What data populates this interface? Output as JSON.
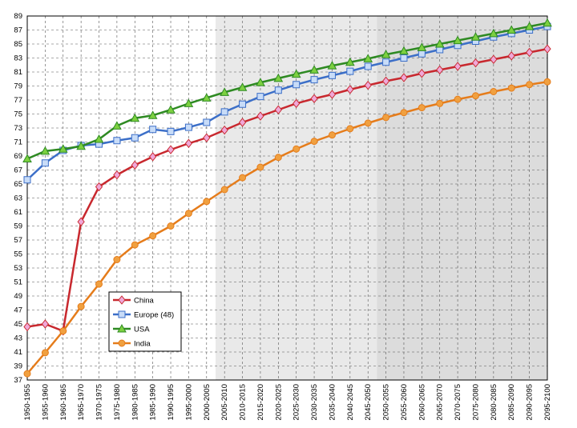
{
  "chart_data": {
    "type": "line",
    "categories": [
      "1950-1955",
      "1955-1960",
      "1960-1965",
      "1965-1970",
      "1970-1975",
      "1975-1980",
      "1980-1985",
      "1985-1990",
      "1990-1995",
      "1995-2000",
      "2000-2005",
      "2005-2010",
      "2010-2015",
      "2015-2020",
      "2020-2025",
      "2025-2030",
      "2030-2035",
      "2035-2040",
      "2040-2045",
      "2045-2050",
      "2050-2055",
      "2055-2060",
      "2060-2065",
      "2065-2070",
      "2070-2075",
      "2075-2080",
      "2080-2085",
      "2085-2090",
      "2090-2095",
      "2095-2100"
    ],
    "series": [
      {
        "name": "China",
        "color": "#c8282e",
        "marker": "diamond",
        "marker_color": "#f0a8d8",
        "values": [
          44.6,
          45.0,
          44.0,
          59.6,
          64.6,
          66.3,
          67.7,
          68.9,
          69.9,
          70.8,
          71.6,
          72.7,
          73.8,
          74.7,
          75.6,
          76.5,
          77.2,
          77.8,
          78.5,
          79.1,
          79.7,
          80.2,
          80.8,
          81.3,
          81.8,
          82.3,
          82.8,
          83.3,
          83.8,
          84.3
        ]
      },
      {
        "name": "Europe (48)",
        "color": "#3c6fc8",
        "marker": "square",
        "marker_color": "#c8dcf8",
        "values": [
          65.6,
          68.0,
          69.8,
          70.5,
          70.7,
          71.2,
          71.6,
          72.8,
          72.5,
          73.1,
          73.8,
          75.3,
          76.4,
          77.5,
          78.4,
          79.2,
          79.9,
          80.5,
          81.1,
          81.8,
          82.4,
          83.0,
          83.6,
          84.2,
          84.8,
          85.4,
          86.0,
          86.5,
          87.0,
          87.5
        ]
      },
      {
        "name": "USA",
        "color": "#2e8a22",
        "marker": "triangle",
        "marker_color": "#7cd040",
        "values": [
          68.6,
          69.7,
          70.0,
          70.4,
          71.4,
          73.3,
          74.4,
          74.8,
          75.6,
          76.5,
          77.3,
          78.1,
          78.8,
          79.5,
          80.1,
          80.7,
          81.3,
          81.9,
          82.4,
          82.9,
          83.5,
          84.0,
          84.5,
          85.0,
          85.5,
          86.0,
          86.5,
          87.0,
          87.5,
          88.0
        ]
      },
      {
        "name": "India",
        "color": "#e57c1b",
        "marker": "circle",
        "marker_color": "#f0a040",
        "values": [
          37.9,
          40.9,
          44.0,
          47.5,
          50.7,
          54.2,
          56.3,
          57.6,
          59.0,
          60.8,
          62.5,
          64.2,
          65.9,
          67.4,
          68.8,
          70.0,
          71.1,
          72.0,
          72.9,
          73.7,
          74.5,
          75.2,
          75.9,
          76.5,
          77.1,
          77.6,
          78.2,
          78.7,
          79.2,
          79.6
        ]
      }
    ],
    "ylim": [
      37,
      89
    ],
    "yticks": [
      37,
      39,
      41,
      43,
      45,
      47,
      49,
      51,
      53,
      55,
      57,
      59,
      61,
      63,
      65,
      67,
      69,
      71,
      73,
      75,
      77,
      79,
      81,
      83,
      85,
      87,
      89
    ],
    "grid": true
  }
}
